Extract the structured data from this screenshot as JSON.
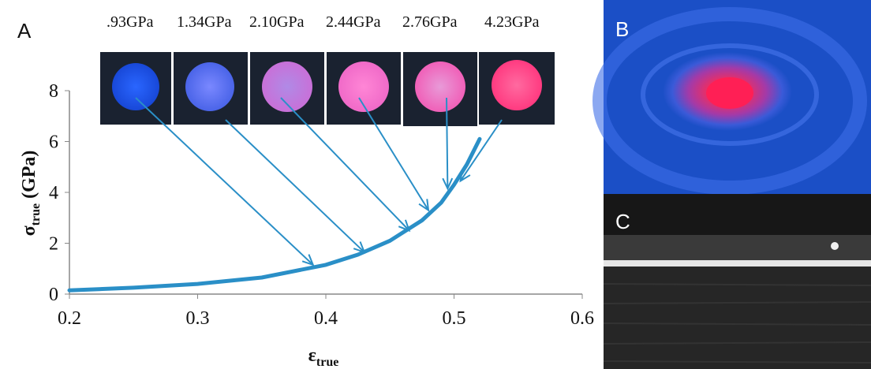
{
  "panels": {
    "a": "A",
    "b": "B",
    "c": "C"
  },
  "chart_data": {
    "type": "line",
    "title": "",
    "xlabel": {
      "main": "ε",
      "sub": "true"
    },
    "ylabel": {
      "main": "σ",
      "sub": "true",
      "unit": " (GPa)"
    },
    "xlim": [
      0.2,
      0.6
    ],
    "ylim": [
      0,
      8
    ],
    "xticks": [
      "0.2",
      "0.3",
      "0.4",
      "0.5",
      "0.6"
    ],
    "yticks": [
      "0",
      "2",
      "4",
      "6",
      "8"
    ],
    "grid": false,
    "series": [
      {
        "color": "#2a8fc7",
        "x": [
          0.2,
          0.25,
          0.3,
          0.35,
          0.4,
          0.425,
          0.45,
          0.475,
          0.49,
          0.5,
          0.51,
          0.52
        ],
        "y": [
          0.15,
          0.25,
          0.4,
          0.65,
          1.15,
          1.55,
          2.1,
          2.9,
          3.6,
          4.3,
          5.1,
          6.1
        ]
      }
    ],
    "pressure_labels": [
      ".93GPa",
      "1.34GPa",
      "2.10GPa",
      "2.44GPa",
      "2.76GPa",
      "4.23GPa"
    ],
    "arrow_targets": [
      {
        "x": 0.39,
        "y": 1.15
      },
      {
        "x": 0.43,
        "y": 1.65
      },
      {
        "x": 0.465,
        "y": 2.5
      },
      {
        "x": 0.48,
        "y": 3.3
      },
      {
        "x": 0.495,
        "y": 4.15
      },
      {
        "x": 0.505,
        "y": 4.45
      }
    ]
  },
  "colors": {
    "curve": "#2a8fc7",
    "photo_dark": "#1a2230",
    "panel_b_background": "#1b4fc6",
    "panel_b_glow": "#ff2f6a",
    "panel_c_background": "#171717"
  }
}
